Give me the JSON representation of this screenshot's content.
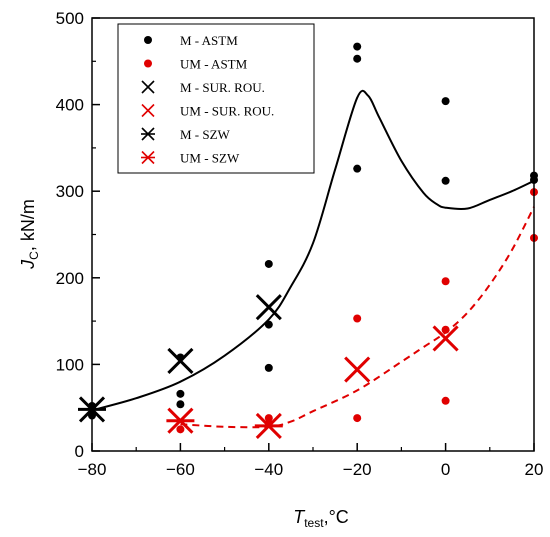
{
  "chart_data": {
    "type": "scatter",
    "xlabel": {
      "main": "T",
      "sub": "test",
      "rest": ",°C"
    },
    "ylabel": {
      "main": "J",
      "sub": "C",
      "rest": ", kN/m"
    },
    "xlim": [
      -80,
      20
    ],
    "ylim": [
      0,
      500
    ],
    "xticks": [
      -80,
      -60,
      -40,
      -20,
      0,
      20
    ],
    "yticks": [
      0,
      100,
      200,
      300,
      400,
      500
    ],
    "xtick_labels": [
      "−80",
      "−60",
      "−40",
      "−20",
      "0",
      "20"
    ],
    "ytick_labels": [
      "0",
      "100",
      "200",
      "300",
      "400",
      "500"
    ],
    "grid": false,
    "legend_position": "top-left",
    "colors": {
      "M": "#000000",
      "UM": "#e00000"
    },
    "series": [
      {
        "name": "M - ASTM",
        "marker": "dot",
        "color": "#000000",
        "points": [
          [
            -80,
            41
          ],
          [
            -80,
            52
          ],
          [
            -60,
            54
          ],
          [
            -60,
            66
          ],
          [
            -60,
            108
          ],
          [
            -40,
            96
          ],
          [
            -40,
            146
          ],
          [
            -40,
            216
          ],
          [
            -20,
            326
          ],
          [
            -20,
            453
          ],
          [
            -20,
            467
          ],
          [
            0,
            312
          ],
          [
            0,
            404
          ],
          [
            20,
            313
          ],
          [
            20,
            318
          ]
        ]
      },
      {
        "name": "UM - ASTM",
        "marker": "dot",
        "color": "#e00000",
        "points": [
          [
            -60,
            25
          ],
          [
            -40,
            32
          ],
          [
            -40,
            38
          ],
          [
            -20,
            38
          ],
          [
            -20,
            153
          ],
          [
            0,
            58
          ],
          [
            0,
            140
          ],
          [
            0,
            196
          ],
          [
            20,
            246
          ],
          [
            20,
            299
          ]
        ]
      },
      {
        "name": "M - SUR. ROU.",
        "marker": "x",
        "color": "#000000",
        "points": [
          [
            -60,
            104
          ],
          [
            -40,
            166
          ]
        ]
      },
      {
        "name": "UM - SUR. ROU.",
        "marker": "x",
        "color": "#e00000",
        "points": [
          [
            -20,
            94
          ],
          [
            0,
            130
          ]
        ]
      },
      {
        "name": "M - SZW",
        "marker": "asterisk",
        "color": "#000000",
        "points": [
          [
            -80,
            48
          ]
        ]
      },
      {
        "name": "UM - SZW",
        "marker": "asterisk",
        "color": "#e00000",
        "points": [
          [
            -60,
            35
          ],
          [
            -40,
            29
          ]
        ]
      }
    ],
    "fit_curves": [
      {
        "color": "#000000",
        "style": "solid",
        "points": [
          [
            -80,
            47
          ],
          [
            -70,
            61
          ],
          [
            -60,
            80
          ],
          [
            -50,
            110
          ],
          [
            -40,
            152
          ],
          [
            -35,
            190
          ],
          [
            -30,
            240
          ],
          [
            -25,
            325
          ],
          [
            -20,
            408
          ],
          [
            -17.5,
            410
          ],
          [
            -15,
            385
          ],
          [
            -10,
            335
          ],
          [
            -5,
            298
          ],
          [
            -2,
            285
          ],
          [
            0,
            281
          ],
          [
            5,
            280
          ],
          [
            10,
            290
          ],
          [
            15,
            300
          ],
          [
            20,
            312
          ]
        ]
      },
      {
        "color": "#e00000",
        "style": "dashed",
        "points": [
          [
            -60,
            31
          ],
          [
            -50,
            28
          ],
          [
            -40,
            28
          ],
          [
            -35,
            34
          ],
          [
            -30,
            46
          ],
          [
            -20,
            70
          ],
          [
            -10,
            103
          ],
          [
            -5,
            120
          ],
          [
            0,
            137
          ],
          [
            5,
            160
          ],
          [
            10,
            192
          ],
          [
            15,
            232
          ],
          [
            20,
            282
          ]
        ]
      }
    ]
  }
}
